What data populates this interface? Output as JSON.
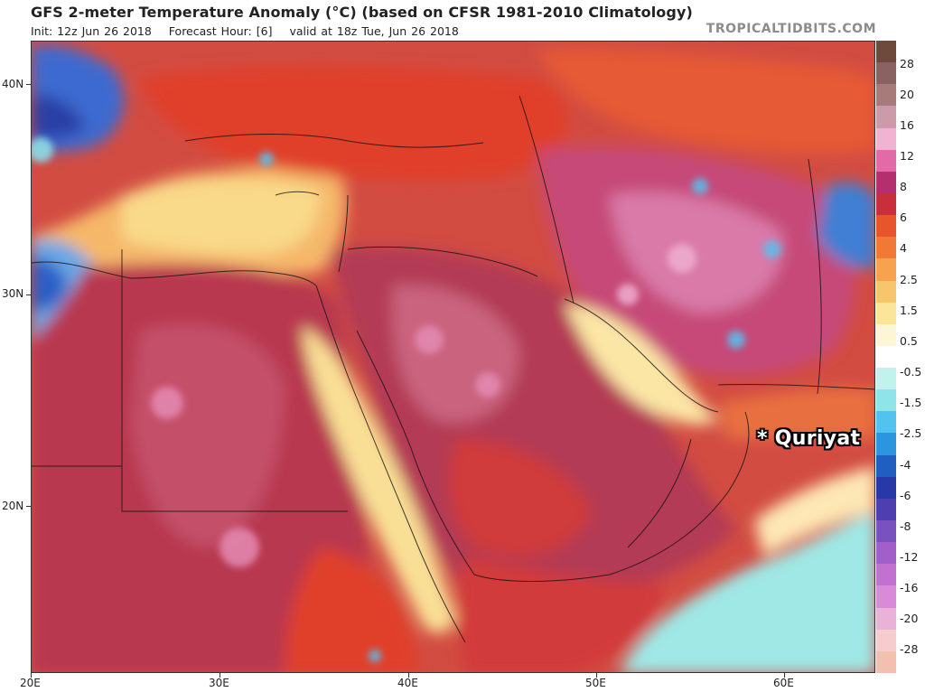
{
  "header": {
    "title": "GFS 2-meter Temperature Anomaly (°C) (based on CFSR 1981-2010 Climatology)",
    "init": "Init: 12z Jun 26 2018",
    "forecast_hour": "Forecast Hour: [6]",
    "valid": "valid at 18z Tue, Jun 26 2018",
    "brand": "TROPICALTIDBITS.COM"
  },
  "axes": {
    "lat_labels": [
      "40N",
      "30N",
      "20N"
    ],
    "lon_labels": [
      "20E",
      "30E",
      "40E",
      "50E",
      "60E"
    ]
  },
  "legend": {
    "labels": [
      "28",
      "20",
      "16",
      "12",
      "8",
      "6",
      "4",
      "2.5",
      "1.5",
      "0.5",
      "-0.5",
      "-1.5",
      "-2.5",
      "-4",
      "-6",
      "-8",
      "-12",
      "-16",
      "-20",
      "-28"
    ],
    "colors": [
      "#6e4a3a",
      "#8a6262",
      "#a87b7b",
      "#cc9aa8",
      "#f2b3d3",
      "#e26aa6",
      "#b52f6e",
      "#c92f3a",
      "#e8542c",
      "#f07a35",
      "#f6a24e",
      "#f7c56c",
      "#fae59a",
      "#fdf6d6",
      "#ffffff",
      "#c2f2ee",
      "#8fe4ea",
      "#52c2ee",
      "#2c95df",
      "#205fbf",
      "#2838a6",
      "#4d3fb0",
      "#7a52c0",
      "#a25ec9",
      "#c271d0",
      "#d98ad8",
      "#ebb2d8",
      "#f6cccf",
      "#f3c0b0"
    ]
  },
  "annotation": {
    "location": "* Quriyat"
  },
  "colors": {
    "hot": "#b0354e",
    "warm": "#e0412c",
    "neutral": "#fae59a",
    "cool": "#8fe4ea",
    "cold": "#2c55c9"
  }
}
